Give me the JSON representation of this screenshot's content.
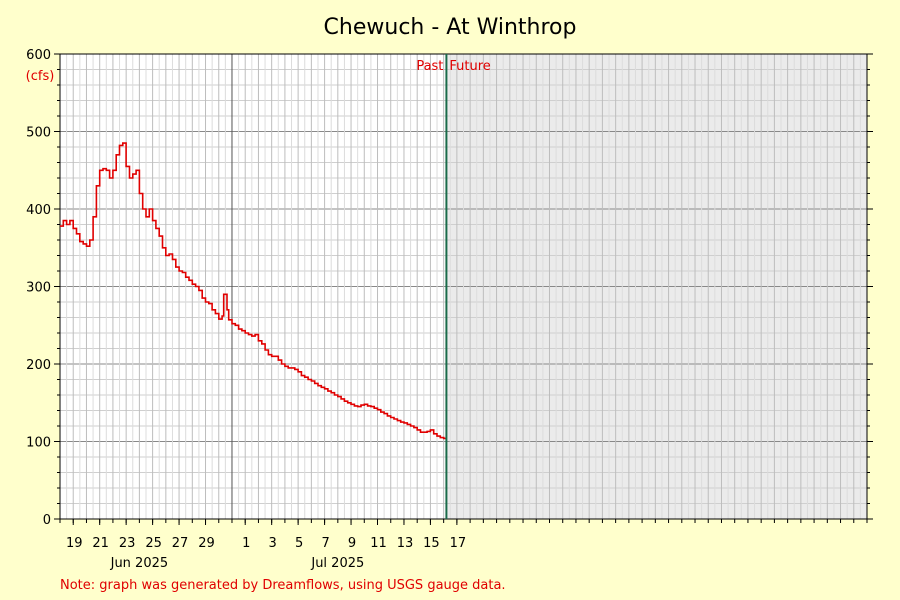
{
  "chart_data": {
    "type": "line",
    "title": "Chewuch - At Winthrop",
    "ylabel": "(cfs)",
    "ylim": [
      0,
      600
    ],
    "y_ticks": [
      "0",
      "100",
      "200",
      "300",
      "400",
      "500",
      "600"
    ],
    "x_start": "2025-05-18",
    "x_end": "2025-07-18",
    "x_ticks": [
      {
        "date": "2025-05-19",
        "label": "19"
      },
      {
        "date": "2025-05-21",
        "label": "21"
      },
      {
        "date": "2025-05-23",
        "label": "23"
      },
      {
        "date": "2025-05-25",
        "label": "25"
      },
      {
        "date": "2025-05-27",
        "label": "27"
      },
      {
        "date": "2025-05-29",
        "label": "29"
      },
      {
        "date": "2025-06-01",
        "label": "1"
      },
      {
        "date": "2025-06-03",
        "label": "3"
      },
      {
        "date": "2025-06-05",
        "label": "5"
      },
      {
        "date": "2025-06-07",
        "label": "7"
      },
      {
        "date": "2025-06-09",
        "label": "9"
      },
      {
        "date": "2025-06-11",
        "label": "11"
      },
      {
        "date": "2025-06-13",
        "label": "13"
      },
      {
        "date": "2025-06-15",
        "label": "15"
      },
      {
        "date": "2025-06-17",
        "label": "17"
      }
    ],
    "month_labels": [
      {
        "date": "2025-05-24",
        "label": "Jun 2025"
      },
      {
        "date": "2025-06-08",
        "label": "Jul 2025"
      }
    ],
    "month_divider": "2025-05-31",
    "grid": true,
    "past_label": "Past",
    "future_label": "Future",
    "now": "2025-06-16T05:00",
    "series": [
      {
        "color": "#e00000",
        "points": [
          [
            "2025-05-18T00:00",
            378
          ],
          [
            "2025-05-18T06:00",
            385
          ],
          [
            "2025-05-18T12:00",
            380
          ],
          [
            "2025-05-18T18:00",
            385
          ],
          [
            "2025-05-19T00:00",
            375
          ],
          [
            "2025-05-19T06:00",
            368
          ],
          [
            "2025-05-19T12:00",
            358
          ],
          [
            "2025-05-19T18:00",
            355
          ],
          [
            "2025-05-20T00:00",
            352
          ],
          [
            "2025-05-20T06:00",
            360
          ],
          [
            "2025-05-20T12:00",
            390
          ],
          [
            "2025-05-20T18:00",
            430
          ],
          [
            "2025-05-21T00:00",
            450
          ],
          [
            "2025-05-21T06:00",
            452
          ],
          [
            "2025-05-21T12:00",
            450
          ],
          [
            "2025-05-21T18:00",
            440
          ],
          [
            "2025-05-22T00:00",
            450
          ],
          [
            "2025-05-22T06:00",
            470
          ],
          [
            "2025-05-22T12:00",
            482
          ],
          [
            "2025-05-22T18:00",
            485
          ],
          [
            "2025-05-23T00:00",
            455
          ],
          [
            "2025-05-23T06:00",
            440
          ],
          [
            "2025-05-23T12:00",
            445
          ],
          [
            "2025-05-23T18:00",
            450
          ],
          [
            "2025-05-24T00:00",
            420
          ],
          [
            "2025-05-24T06:00",
            400
          ],
          [
            "2025-05-24T12:00",
            390
          ],
          [
            "2025-05-24T18:00",
            400
          ],
          [
            "2025-05-25T00:00",
            385
          ],
          [
            "2025-05-25T06:00",
            375
          ],
          [
            "2025-05-25T12:00",
            365
          ],
          [
            "2025-05-25T18:00",
            350
          ],
          [
            "2025-05-26T00:00",
            340
          ],
          [
            "2025-05-26T06:00",
            342
          ],
          [
            "2025-05-26T12:00",
            335
          ],
          [
            "2025-05-26T18:00",
            325
          ],
          [
            "2025-05-27T00:00",
            320
          ],
          [
            "2025-05-27T06:00",
            318
          ],
          [
            "2025-05-27T12:00",
            312
          ],
          [
            "2025-05-27T18:00",
            308
          ],
          [
            "2025-05-28T00:00",
            303
          ],
          [
            "2025-05-28T06:00",
            300
          ],
          [
            "2025-05-28T12:00",
            295
          ],
          [
            "2025-05-28T18:00",
            285
          ],
          [
            "2025-05-29T00:00",
            280
          ],
          [
            "2025-05-29T06:00",
            278
          ],
          [
            "2025-05-29T12:00",
            270
          ],
          [
            "2025-05-29T18:00",
            265
          ],
          [
            "2025-05-30T00:00",
            258
          ],
          [
            "2025-05-30T06:00",
            262
          ],
          [
            "2025-05-30T09:00",
            290
          ],
          [
            "2025-05-30T15:00",
            270
          ],
          [
            "2025-05-30T18:00",
            257
          ],
          [
            "2025-05-31T00:00",
            252
          ],
          [
            "2025-05-31T06:00",
            250
          ],
          [
            "2025-05-31T12:00",
            245
          ],
          [
            "2025-05-31T18:00",
            243
          ],
          [
            "2025-06-01T00:00",
            240
          ],
          [
            "2025-06-01T06:00",
            238
          ],
          [
            "2025-06-01T12:00",
            236
          ],
          [
            "2025-06-01T18:00",
            238
          ],
          [
            "2025-06-02T00:00",
            230
          ],
          [
            "2025-06-02T06:00",
            226
          ],
          [
            "2025-06-02T12:00",
            218
          ],
          [
            "2025-06-02T18:00",
            212
          ],
          [
            "2025-06-03T00:00",
            210
          ],
          [
            "2025-06-03T06:00",
            210
          ],
          [
            "2025-06-03T12:00",
            205
          ],
          [
            "2025-06-03T18:00",
            200
          ],
          [
            "2025-06-04T00:00",
            197
          ],
          [
            "2025-06-04T06:00",
            195
          ],
          [
            "2025-06-04T12:00",
            195
          ],
          [
            "2025-06-04T18:00",
            193
          ],
          [
            "2025-06-05T00:00",
            190
          ],
          [
            "2025-06-05T06:00",
            185
          ],
          [
            "2025-06-05T12:00",
            183
          ],
          [
            "2025-06-05T18:00",
            180
          ],
          [
            "2025-06-06T00:00",
            178
          ],
          [
            "2025-06-06T06:00",
            175
          ],
          [
            "2025-06-06T12:00",
            172
          ],
          [
            "2025-06-06T18:00",
            170
          ],
          [
            "2025-06-07T00:00",
            168
          ],
          [
            "2025-06-07T06:00",
            165
          ],
          [
            "2025-06-07T12:00",
            163
          ],
          [
            "2025-06-07T18:00",
            160
          ],
          [
            "2025-06-08T00:00",
            158
          ],
          [
            "2025-06-08T06:00",
            155
          ],
          [
            "2025-06-08T12:00",
            152
          ],
          [
            "2025-06-08T18:00",
            150
          ],
          [
            "2025-06-09T00:00",
            148
          ],
          [
            "2025-06-09T06:00",
            146
          ],
          [
            "2025-06-09T12:00",
            145
          ],
          [
            "2025-06-09T18:00",
            147
          ],
          [
            "2025-06-10T00:00",
            148
          ],
          [
            "2025-06-10T06:00",
            146
          ],
          [
            "2025-06-10T12:00",
            145
          ],
          [
            "2025-06-10T18:00",
            143
          ],
          [
            "2025-06-11T00:00",
            141
          ],
          [
            "2025-06-11T06:00",
            138
          ],
          [
            "2025-06-11T12:00",
            136
          ],
          [
            "2025-06-11T18:00",
            133
          ],
          [
            "2025-06-12T00:00",
            131
          ],
          [
            "2025-06-12T06:00",
            129
          ],
          [
            "2025-06-12T12:00",
            127
          ],
          [
            "2025-06-12T18:00",
            125
          ],
          [
            "2025-06-13T00:00",
            124
          ],
          [
            "2025-06-13T06:00",
            122
          ],
          [
            "2025-06-13T12:00",
            120
          ],
          [
            "2025-06-13T18:00",
            118
          ],
          [
            "2025-06-14T00:00",
            115
          ],
          [
            "2025-06-14T06:00",
            112
          ],
          [
            "2025-06-14T12:00",
            112
          ],
          [
            "2025-06-14T18:00",
            113
          ],
          [
            "2025-06-15T00:00",
            115
          ],
          [
            "2025-06-15T06:00",
            110
          ],
          [
            "2025-06-15T12:00",
            107
          ],
          [
            "2025-06-15T18:00",
            105
          ],
          [
            "2025-06-16T00:00",
            104
          ],
          [
            "2025-06-16T05:00",
            104
          ]
        ]
      }
    ]
  },
  "footer_note": "Note: graph was generated by Dreamflows, using USGS gauge data."
}
